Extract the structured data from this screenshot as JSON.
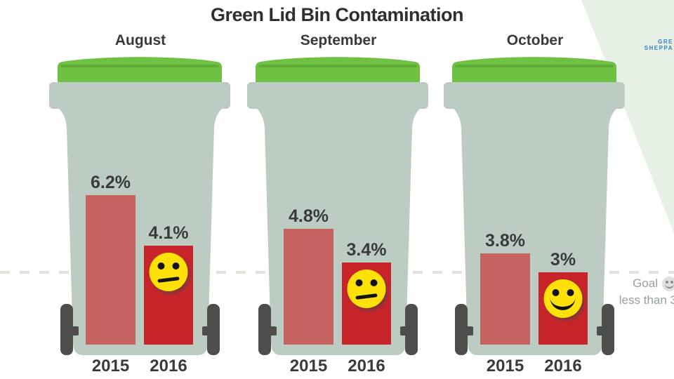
{
  "header": {
    "title": "Green Lid Bin Contamination"
  },
  "logo": {
    "line1": "Gre",
    "line2": "Sheppa"
  },
  "goal_note": {
    "line1": "Goal",
    "line2": "less than 3",
    "icon": "smiley-icon"
  },
  "chart_data": {
    "type": "bar",
    "title": "Green Lid Bin Contamination",
    "unit": "%",
    "categories": [
      "2015",
      "2016"
    ],
    "groups": [
      {
        "month": "August",
        "series": [
          {
            "year": "2015",
            "value": 6.2,
            "label": "6.2%"
          },
          {
            "year": "2016",
            "value": 4.1,
            "label": "4.1%",
            "face": "neutral"
          }
        ]
      },
      {
        "month": "September",
        "series": [
          {
            "year": "2015",
            "value": 4.8,
            "label": "4.8%"
          },
          {
            "year": "2016",
            "value": 3.4,
            "label": "3.4%",
            "face": "neutral"
          }
        ]
      },
      {
        "month": "October",
        "series": [
          {
            "year": "2015",
            "value": 3.8,
            "label": "3.8%"
          },
          {
            "year": "2016",
            "value": 3.0,
            "label": "3%",
            "face": "happy"
          }
        ]
      }
    ],
    "goal": {
      "value": 3,
      "visible_text": "Goal less than 3"
    },
    "ylim": [
      0,
      7
    ],
    "legend_position": "none",
    "grid": "single dashed goal line",
    "colors": {
      "bar_2015": "#c4635f",
      "bar_2016": "#c8252b",
      "lid_green": "#6fc143",
      "bin_body": "#bdccc2",
      "face_yellow": "#ffe10a",
      "wheel": "#4d4d4d",
      "goal_text": "#98a098",
      "logo_blue": "#2f83c5",
      "corner_triangle": "#e7f0e5"
    }
  }
}
